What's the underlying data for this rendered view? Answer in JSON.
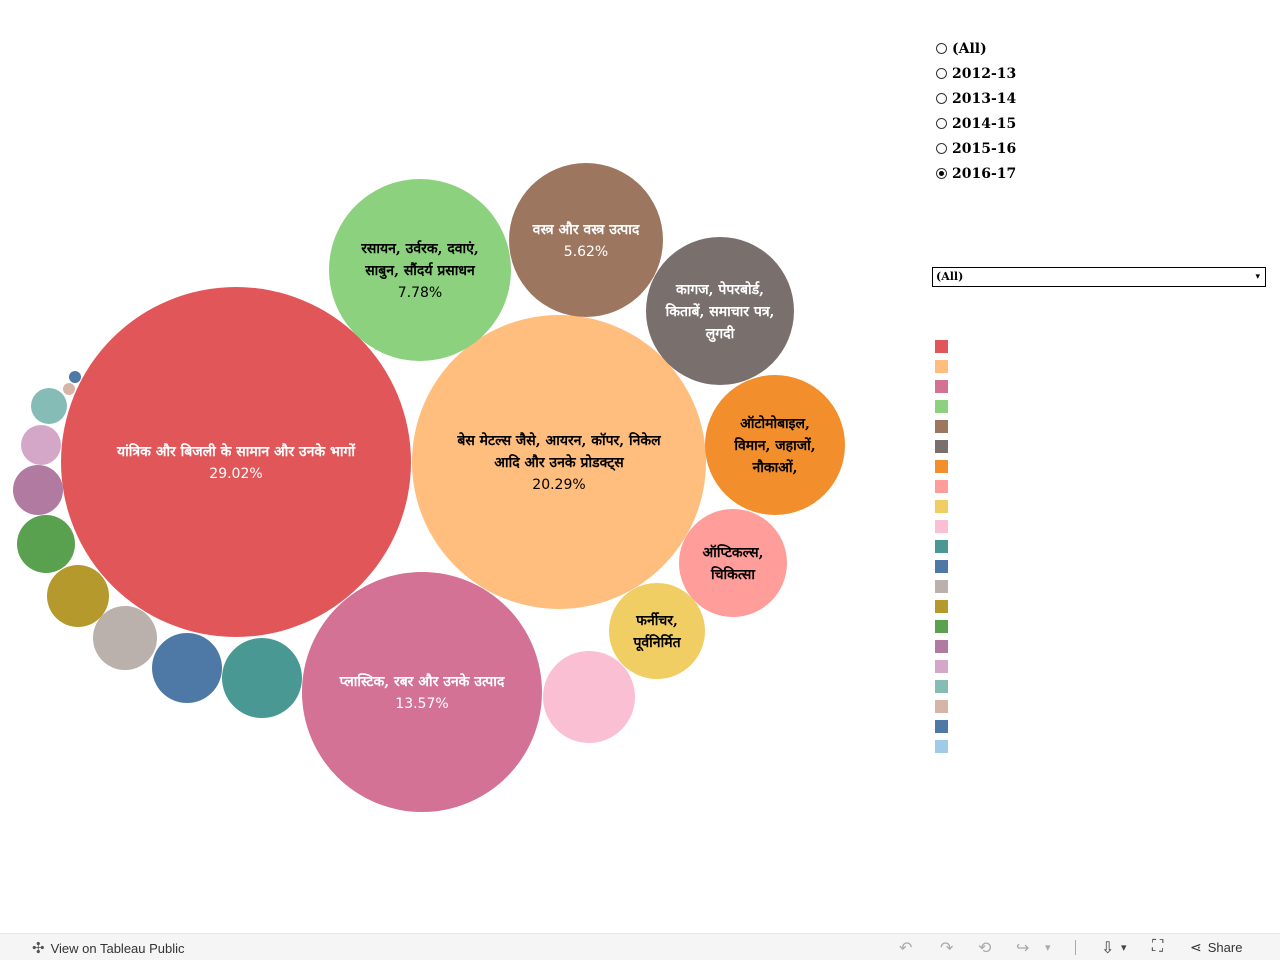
{
  "chart_title": "",
  "chart_data": {
    "type": "bubble",
    "title": "",
    "size_encoding": "share_percent",
    "bubbles": [
      {
        "label_lines": [
          "यांत्रिक और बिजली के सामान और उनके भागों"
        ],
        "value_label": "29.02%",
        "value": 29.02,
        "color": "#E15759",
        "text_color": "#ffffff"
      },
      {
        "label_lines": [
          "बेस मेटल्स जैसे, आयरन, कॉपर, निकेल",
          "आदि और उनके प्रोडक्ट्स"
        ],
        "value_label": "20.29%",
        "value": 20.29,
        "color": "#FFBE7D",
        "text_color": "#000000"
      },
      {
        "label_lines": [
          "प्लास्टिक, रबर और उनके उत्पाद"
        ],
        "value_label": "13.57%",
        "value": 13.57,
        "color": "#D37295",
        "text_color": "#ffffff"
      },
      {
        "label_lines": [
          "रसायन, उर्वरक, दवाएं,",
          "साबुन, सौंदर्य प्रसाधन"
        ],
        "value_label": "7.78%",
        "value": 7.78,
        "color": "#8CD17D",
        "text_color": "#000000"
      },
      {
        "label_lines": [
          "वस्त्र और वस्त्र उत्पाद"
        ],
        "value_label": "5.62%",
        "value": 5.62,
        "color": "#9D7660",
        "text_color": "#ffffff"
      },
      {
        "label_lines": [
          "कागज, पेपरबोर्ड,",
          "किताबें, समाचार पत्र,",
          "लुगदी"
        ],
        "value_label": "",
        "value": 5.2,
        "color": "#79706E",
        "text_color": "#ffffff"
      },
      {
        "label_lines": [
          "ऑटोमोबाइल,",
          "विमान, जहाजों,",
          "नौकाओं,"
        ],
        "value_label": "",
        "value": 4.5,
        "color": "#F28E2B",
        "text_color": "#000000"
      },
      {
        "label_lines": [
          "ऑप्टिकल्स,",
          "चिकित्सा"
        ],
        "value_label": "",
        "value": 2.75,
        "color": "#FF9D9A",
        "text_color": "#000000"
      },
      {
        "label_lines": [
          "फर्नीचर,",
          "पूर्वनिर्मित"
        ],
        "value_label": "",
        "value": 2.2,
        "color": "#F1CE63",
        "text_color": "#000000"
      },
      {
        "label_lines": [],
        "value_label": "",
        "value": 2.0,
        "color": "#FABFD2",
        "text_color": "#000000"
      },
      {
        "label_lines": [],
        "value_label": "",
        "value": 1.55,
        "color": "#499894",
        "text_color": "#ffffff"
      },
      {
        "label_lines": [],
        "value_label": "",
        "value": 1.16,
        "color": "#4E79A7",
        "text_color": "#ffffff"
      },
      {
        "label_lines": [],
        "value_label": "",
        "value": 0.98,
        "color": "#BAB0AC",
        "text_color": "#000000"
      },
      {
        "label_lines": [],
        "value_label": "",
        "value": 0.89,
        "color": "#B6992D",
        "text_color": "#000000"
      },
      {
        "label_lines": [],
        "value_label": "",
        "value": 0.8,
        "color": "#59A14F",
        "text_color": "#ffffff"
      },
      {
        "label_lines": [],
        "value_label": "",
        "value": 0.6,
        "color": "#B07AA1",
        "text_color": "#ffffff"
      },
      {
        "label_lines": [],
        "value_label": "",
        "value": 0.38,
        "color": "#D4A6C8",
        "text_color": "#000000"
      },
      {
        "label_lines": [],
        "value_label": "",
        "value": 0.3,
        "color": "#86BCB6",
        "text_color": "#000000"
      },
      {
        "label_lines": [],
        "value_label": "",
        "value": 0.02,
        "color": "#D7B5A6",
        "text_color": "#000000"
      },
      {
        "label_lines": [],
        "value_label": "",
        "value": 0.017,
        "color": "#4E79A7",
        "text_color": "#ffffff"
      }
    ]
  },
  "year_filter": {
    "title": "",
    "options": [
      "(All)",
      "2012-13",
      "2013-14",
      "2014-15",
      "2015-16",
      "2016-17"
    ],
    "selected": "2016-17"
  },
  "sector_filter": {
    "title": "",
    "selected": "(All)",
    "caret_icon": "▾"
  },
  "legend": {
    "title": "",
    "items": [
      {
        "label": "",
        "color": "#E15759"
      },
      {
        "label": "",
        "color": "#FFBE7D"
      },
      {
        "label": "",
        "color": "#D37295"
      },
      {
        "label": "",
        "color": "#8CD17D"
      },
      {
        "label": "",
        "color": "#9D7660"
      },
      {
        "label": "",
        "color": "#79706E"
      },
      {
        "label": "",
        "color": "#F28E2B"
      },
      {
        "label": "",
        "color": "#FF9D9A"
      },
      {
        "label": "",
        "color": "#F1CE63"
      },
      {
        "label": "",
        "color": "#FABFD2"
      },
      {
        "label": "",
        "color": "#499894"
      },
      {
        "label": "",
        "color": "#4E79A7"
      },
      {
        "label": "",
        "color": "#BAB0AC"
      },
      {
        "label": "",
        "color": "#B6992D"
      },
      {
        "label": "",
        "color": "#59A14F"
      },
      {
        "label": "",
        "color": "#B07AA1"
      },
      {
        "label": "",
        "color": "#D4A6C8"
      },
      {
        "label": "",
        "color": "#86BCB6"
      },
      {
        "label": "",
        "color": "#D7B5A6"
      },
      {
        "label": "",
        "color": "#4E79A7"
      },
      {
        "label": "",
        "color": "#A0CBE8"
      }
    ]
  },
  "toolbar": {
    "view_label": "View on Tableau Public",
    "share_label": "Share",
    "icons": {
      "tableau": "✣",
      "undo": "↶",
      "redo": "↷",
      "revert": "⟲",
      "forward": "↪",
      "dropdown": "▾",
      "download": "⇩",
      "fullscreen": "⛶",
      "share": "⋖"
    }
  }
}
